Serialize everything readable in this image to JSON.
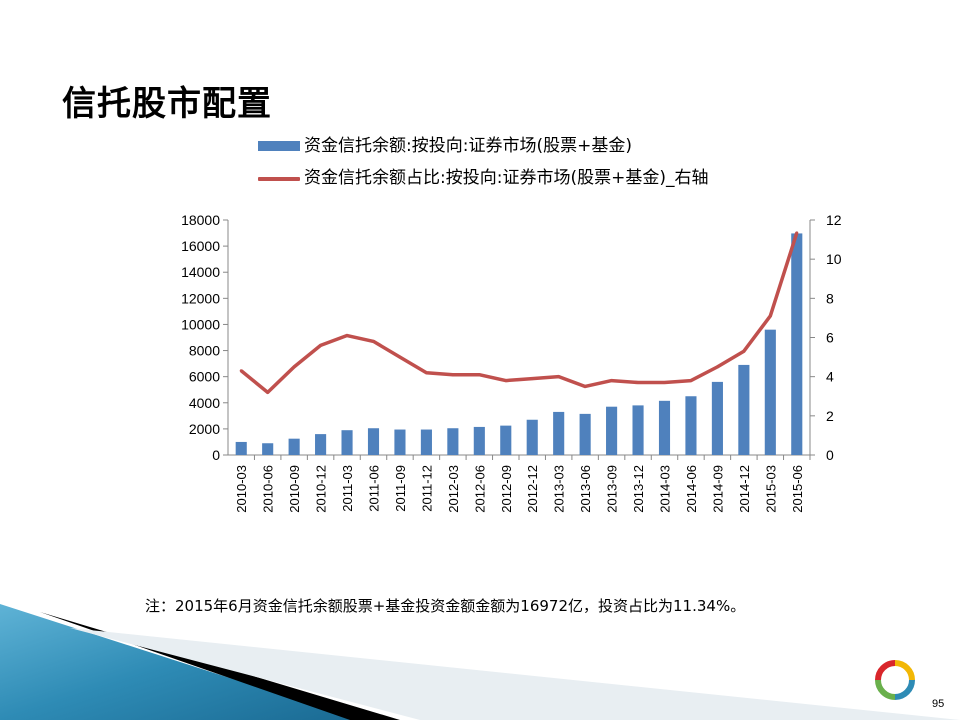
{
  "slide": {
    "title": "信托股市配置",
    "footnote": "注：2015年6月资金信托余额股票+基金投资金额金额为16972亿，投资占比为11.34%。",
    "page_number": "95"
  },
  "colors": {
    "bar": "#4f81bd",
    "line": "#c0504d",
    "decor_blue": "#2e8bb5",
    "decor_black": "#000000"
  },
  "chart_data": {
    "type": "bar+line",
    "categories": [
      "2010-03",
      "2010-06",
      "2010-09",
      "2010-12",
      "2011-03",
      "2011-06",
      "2011-09",
      "2011-12",
      "2012-03",
      "2012-06",
      "2012-09",
      "2012-12",
      "2013-03",
      "2013-06",
      "2013-09",
      "2013-12",
      "2014-03",
      "2014-06",
      "2014-09",
      "2014-12",
      "2015-03",
      "2015-06"
    ],
    "series": [
      {
        "name": "资金信托余额:按投向:证券市场(股票+基金)",
        "type": "bar",
        "axis": "left",
        "values": [
          1000,
          900,
          1250,
          1600,
          1900,
          2050,
          1950,
          1950,
          2050,
          2150,
          2250,
          2700,
          3300,
          3150,
          3700,
          3800,
          4150,
          4500,
          5600,
          6900,
          9600,
          16972
        ]
      },
      {
        "name": "资金信托余额占比:按投向:证券市场(股票+基金)_右轴",
        "type": "line",
        "axis": "right",
        "values": [
          4.3,
          3.2,
          4.5,
          5.6,
          6.1,
          5.8,
          5.0,
          4.2,
          4.1,
          4.1,
          3.8,
          3.9,
          4.0,
          3.5,
          3.8,
          3.7,
          3.7,
          3.8,
          4.5,
          5.3,
          7.1,
          11.34
        ]
      }
    ],
    "left_axis": {
      "min": 0,
      "max": 18000,
      "ticks": [
        "0",
        "2000",
        "4000",
        "6000",
        "8000",
        "10000",
        "12000",
        "14000",
        "16000",
        "18000"
      ]
    },
    "right_axis": {
      "min": 0,
      "max": 12,
      "ticks": [
        "0",
        "2",
        "4",
        "6",
        "8",
        "10",
        "12"
      ]
    },
    "grid": false,
    "legend_position": "top"
  }
}
